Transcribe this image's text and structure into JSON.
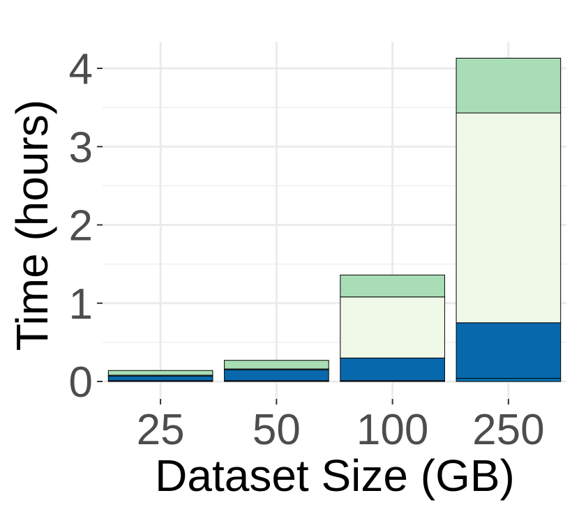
{
  "chart_data": {
    "type": "bar",
    "stacked": true,
    "title": "",
    "xlabel": "Dataset Size (GB)",
    "ylabel": "Time (hours)",
    "categories": [
      "25",
      "50",
      "100",
      "250"
    ],
    "ylim": [
      0,
      4.3
    ],
    "yticks": [
      0,
      1,
      2,
      3,
      4
    ],
    "grid": true,
    "legend": "none",
    "series": [
      {
        "color": "#0570b0",
        "values": [
          0.01,
          0.01,
          0.01,
          0.04
        ]
      },
      {
        "color": "#0868ac",
        "values": [
          0.06,
          0.14,
          0.29,
          0.71
        ]
      },
      {
        "color": "#f0f9e8",
        "values": [
          0.01,
          0.01,
          0.78,
          2.68
        ]
      },
      {
        "color": "#a8ddb5",
        "values": [
          0.06,
          0.11,
          0.28,
          0.7
        ]
      }
    ]
  }
}
